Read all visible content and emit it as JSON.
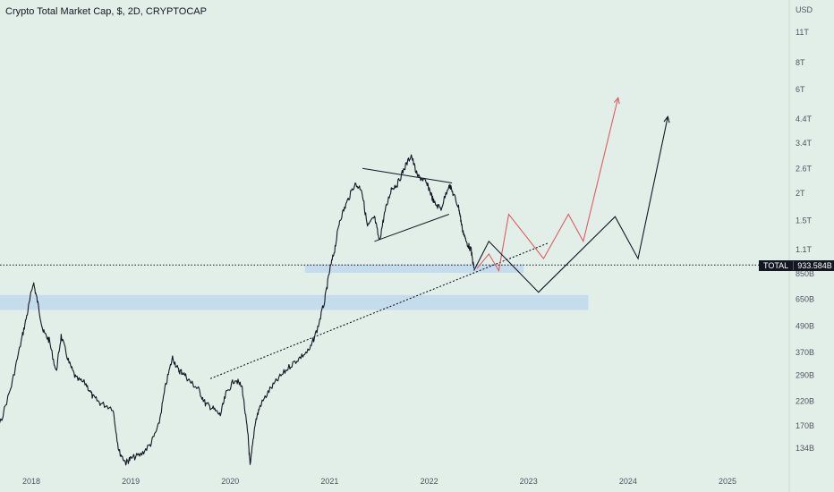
{
  "chart_data": {
    "type": "line",
    "title": "Crypto Total Market Cap, $, 2D, CRYPTOCAP",
    "currency_label": "USD",
    "y_scale": "log",
    "price_ticks": [
      "11T",
      "8T",
      "6T",
      "4.4T",
      "3.4T",
      "2.6T",
      "2T",
      "1.5T",
      "1.1T",
      "850B",
      "650B",
      "490B",
      "370B",
      "290B",
      "220B",
      "170B",
      "134B"
    ],
    "time_ticks": [
      "2018",
      "2019",
      "2020",
      "2021",
      "2022",
      "2023",
      "2024",
      "2025"
    ],
    "last_price": {
      "symbol": "TOTAL",
      "value": "933.584B",
      "value_num": 933.584
    },
    "series": [
      {
        "x": [
          2017.42,
          2017.55,
          2017.68,
          2017.8,
          2017.9,
          2017.96,
          2018.02,
          2018.06,
          2018.12,
          2018.18,
          2018.25,
          2018.3,
          2018.38,
          2018.45,
          2018.55,
          2018.62,
          2018.7,
          2018.82,
          2018.88,
          2018.95,
          2019.0,
          2019.1,
          2019.2,
          2019.28,
          2019.35,
          2019.42,
          2019.48,
          2019.52,
          2019.6,
          2019.68,
          2019.75,
          2019.82,
          2019.9,
          2019.96,
          2020.05,
          2020.12,
          2020.18,
          2020.2,
          2020.25,
          2020.3,
          2020.4,
          2020.5,
          2020.6,
          2020.7,
          2020.8,
          2020.88,
          2020.95,
          2021.0,
          2021.05,
          2021.1,
          2021.17,
          2021.25,
          2021.32,
          2021.38,
          2021.45,
          2021.5,
          2021.55,
          2021.62,
          2021.68,
          2021.75,
          2021.82,
          2021.88,
          2021.95,
          2022.0,
          2022.05,
          2022.12,
          2022.2,
          2022.25,
          2022.3,
          2022.33,
          2022.37,
          2022.42,
          2022.45
        ],
        "values": [
          100,
          130,
          170,
          260,
          420,
          560,
          780,
          640,
          460,
          420,
          300,
          440,
          330,
          280,
          265,
          230,
          215,
          205,
          130,
          115,
          120,
          125,
          140,
          170,
          260,
          350,
          305,
          300,
          270,
          250,
          215,
          205,
          190,
          240,
          280,
          255,
          150,
          110,
          175,
          210,
          250,
          285,
          320,
          350,
          380,
          480,
          640,
          880,
          1100,
          1500,
          1800,
          2200,
          2100,
          1400,
          1550,
          1200,
          1600,
          2100,
          2200,
          2600,
          3000,
          2400,
          2300,
          2100,
          1800,
          1700,
          2200,
          1950,
          1700,
          1400,
          1200,
          1100,
          900
        ]
      }
    ],
    "annotations": {
      "support_zones": [
        {
          "x0": 2017.08,
          "x1": 2023.6,
          "y0": 580,
          "y1": 680
        },
        {
          "x0": 2020.75,
          "x1": 2022.95,
          "y0": 860,
          "y1": 940
        }
      ],
      "dotted_trendline": {
        "x": [
          2019.8,
          2023.2
        ],
        "y": [
          280,
          1180
        ]
      },
      "triangle_upper": {
        "x": [
          2021.33,
          2022.23
        ],
        "y": [
          2600,
          2230
        ]
      },
      "triangle_lower": {
        "x": [
          2021.45,
          2022.2
        ],
        "y": [
          1200,
          1600
        ]
      },
      "projection_red": {
        "color": "#e05a63",
        "x": [
          2022.48,
          2022.6,
          2022.7,
          2022.8,
          2023.15,
          2023.4,
          2023.55,
          2023.9
        ],
        "y": [
          900,
          1050,
          880,
          1600,
          1000,
          1600,
          1200,
          5500
        ]
      },
      "projection_black": {
        "color": "#131722",
        "x": [
          2022.45,
          2022.6,
          2023.1,
          2023.87,
          2024.1,
          2024.4
        ],
        "y": [
          880,
          1200,
          700,
          1560,
          1000,
          4500
        ]
      }
    }
  }
}
